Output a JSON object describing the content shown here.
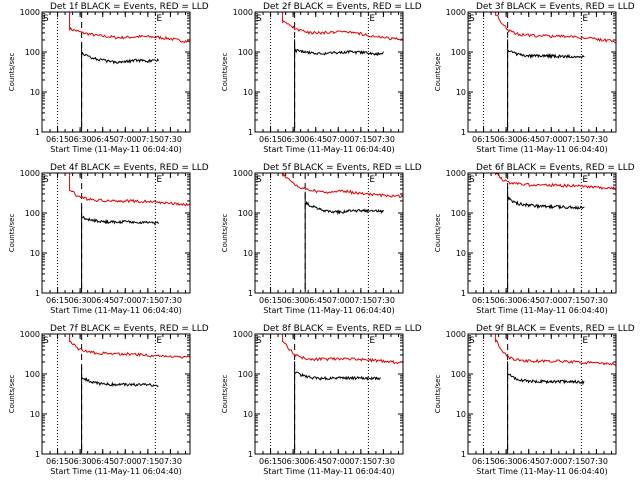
{
  "colors": {
    "events": "#000000",
    "lld": "#e00000",
    "axis": "#000000"
  },
  "shared": {
    "xlabel": "Start Time (11-May-11 06:04:40)",
    "ylabel": "Counts/sec",
    "xticks": [
      "06:15",
      "06:30",
      "06:45",
      "07:00",
      "07:15",
      "07:30"
    ],
    "yticks": [
      "1",
      "10",
      "100",
      "1000"
    ],
    "marker_s": "S",
    "marker_e": "E"
  },
  "chart_data": [
    {
      "type": "line",
      "title": "Det 1f BLACK = Events, RED = LLD",
      "y_scale": "log",
      "ylim": [
        1,
        1000
      ],
      "xlim": [
        "06:04:40",
        "07:43"
      ],
      "vlines_dotted": [
        "06:15",
        "07:20",
        "07:43"
      ],
      "vline_dashed": "06:31",
      "series": [
        {
          "id": "lld",
          "color": "#e00000",
          "x_range": [
            "06:23",
            "07:43"
          ],
          "spike_peak": 1000,
          "values": [
            380,
            340,
            300,
            280,
            260,
            250,
            240,
            230,
            230,
            235,
            240,
            245,
            240,
            235,
            225,
            215,
            200,
            190,
            180
          ]
        },
        {
          "id": "events",
          "color": "#000000",
          "x_range": [
            "06:31",
            "07:22"
          ],
          "values": [
            90,
            80,
            70,
            65,
            60,
            58,
            56,
            58,
            60,
            62,
            60,
            58,
            60,
            62
          ]
        }
      ]
    },
    {
      "type": "line",
      "title": "Det 2f BLACK = Events, RED = LLD",
      "y_scale": "log",
      "ylim": [
        1,
        1000
      ],
      "xlim": [
        "06:04:40",
        "07:43"
      ],
      "vlines_dotted": [
        "06:15",
        "07:20",
        "07:43"
      ],
      "vline_dashed": "06:31",
      "series": [
        {
          "id": "lld",
          "color": "#e00000",
          "x_range": [
            "06:23",
            "07:43"
          ],
          "spike_peak": 1000,
          "values": [
            600,
            460,
            380,
            330,
            310,
            300,
            300,
            310,
            320,
            330,
            320,
            300,
            280,
            260,
            240,
            230,
            220,
            210,
            200
          ]
        },
        {
          "id": "events",
          "color": "#000000",
          "x_range": [
            "06:31",
            "07:30"
          ],
          "values": [
            110,
            105,
            100,
            95,
            90,
            92,
            95,
            98,
            100,
            100,
            98,
            95,
            92,
            90,
            95
          ]
        }
      ]
    },
    {
      "type": "line",
      "title": "Det 3f BLACK = Events, RED = LLD",
      "y_scale": "log",
      "ylim": [
        1,
        1000
      ],
      "xlim": [
        "06:04:40",
        "07:43"
      ],
      "vlines_dotted": [
        "06:15",
        "07:20",
        "07:43"
      ],
      "vline_dashed": "06:31",
      "series": [
        {
          "id": "lld",
          "color": "#e00000",
          "x_range": [
            "06:23",
            "07:43"
          ],
          "spike_peak": 1000,
          "values": [
            900,
            500,
            340,
            290,
            270,
            260,
            255,
            255,
            250,
            250,
            250,
            245,
            240,
            230,
            220,
            210,
            200,
            190,
            180
          ]
        },
        {
          "id": "events",
          "color": "#000000",
          "x_range": [
            "06:31",
            "07:22"
          ],
          "values": [
            110,
            95,
            85,
            80,
            80,
            80,
            80,
            80,
            80,
            78,
            78,
            78,
            75,
            75
          ]
        }
      ]
    },
    {
      "type": "line",
      "title": "Det 4f BLACK = Events, RED = LLD",
      "y_scale": "log",
      "ylim": [
        1,
        1000
      ],
      "xlim": [
        "06:04:40",
        "07:43"
      ],
      "vlines_dotted": [
        "06:15",
        "07:20",
        "07:43"
      ],
      "vline_dashed": "06:31",
      "series": [
        {
          "id": "lld",
          "color": "#e00000",
          "x_range": [
            "06:23",
            "07:43"
          ],
          "spike_peak": 1000,
          "values": [
            400,
            280,
            240,
            220,
            210,
            205,
            200,
            200,
            200,
            200,
            200,
            195,
            190,
            185,
            180,
            175,
            170,
            165,
            160
          ]
        },
        {
          "id": "events",
          "color": "#000000",
          "x_range": [
            "06:31",
            "07:22"
          ],
          "values": [
            80,
            70,
            65,
            62,
            60,
            60,
            60,
            60,
            60,
            58,
            58,
            58,
            56,
            55
          ]
        }
      ]
    },
    {
      "type": "line",
      "title": "Det 5f BLACK = Events, RED = LLD",
      "y_scale": "log",
      "ylim": [
        1,
        1000
      ],
      "xlim": [
        "06:04:40",
        "07:43"
      ],
      "vlines_dotted": [
        "06:15",
        "07:20",
        "07:43"
      ],
      "vline_dashed": "06:38",
      "series": [
        {
          "id": "lld",
          "color": "#e00000",
          "x_range": [
            "06:23",
            "07:43"
          ],
          "spike_peak": 1000,
          "values": [
            900,
            700,
            500,
            420,
            380,
            350,
            330,
            330,
            340,
            350,
            340,
            320,
            300,
            290,
            280,
            275,
            270,
            265,
            260
          ]
        },
        {
          "id": "events",
          "color": "#000000",
          "x_range": [
            "06:38",
            "07:30"
          ],
          "values": [
            180,
            150,
            130,
            115,
            110,
            105,
            105,
            110,
            115,
            115,
            115,
            112,
            110,
            110
          ]
        }
      ]
    },
    {
      "type": "line",
      "title": "Det 6f BLACK = Events, RED = LLD",
      "y_scale": "log",
      "ylim": [
        1,
        1000
      ],
      "xlim": [
        "06:04:40",
        "07:43"
      ],
      "vlines_dotted": [
        "06:15",
        "07:20",
        "07:43"
      ],
      "vline_dashed": "06:31",
      "series": [
        {
          "id": "lld",
          "color": "#e00000",
          "x_range": [
            "06:23",
            "07:43"
          ],
          "spike_peak": 1000,
          "values": [
            1000,
            700,
            580,
            540,
            520,
            510,
            505,
            500,
            500,
            495,
            490,
            480,
            470,
            460,
            450,
            440,
            430,
            420,
            410
          ]
        },
        {
          "id": "events",
          "color": "#000000",
          "x_range": [
            "06:31",
            "07:22"
          ],
          "values": [
            240,
            190,
            170,
            160,
            155,
            150,
            148,
            145,
            145,
            142,
            140,
            138,
            136,
            135
          ]
        }
      ]
    },
    {
      "type": "line",
      "title": "Det 7f BLACK = Events, RED = LLD",
      "y_scale": "log",
      "ylim": [
        1,
        1000
      ],
      "xlim": [
        "06:04:40",
        "07:43"
      ],
      "vlines_dotted": [
        "06:15",
        "07:20",
        "07:43"
      ],
      "vline_dashed": "06:31",
      "series": [
        {
          "id": "lld",
          "color": "#e00000",
          "x_range": [
            "06:23",
            "07:43"
          ],
          "spike_peak": 1000,
          "values": [
            700,
            450,
            380,
            350,
            340,
            330,
            320,
            320,
            320,
            315,
            310,
            300,
            290,
            285,
            280,
            275,
            270,
            268,
            265
          ]
        },
        {
          "id": "events",
          "color": "#000000",
          "x_range": [
            "06:31",
            "07:22"
          ],
          "values": [
            80,
            70,
            62,
            58,
            56,
            55,
            55,
            55,
            55,
            54,
            54,
            54,
            53,
            52
          ]
        }
      ]
    },
    {
      "type": "line",
      "title": "Det 8f BLACK = Events, RED = LLD",
      "y_scale": "log",
      "ylim": [
        1,
        1000
      ],
      "xlim": [
        "06:04:40",
        "07:43"
      ],
      "vlines_dotted": [
        "06:15",
        "07:20",
        "07:43"
      ],
      "vline_dashed": "06:31",
      "series": [
        {
          "id": "lld",
          "color": "#e00000",
          "x_range": [
            "06:23",
            "07:43"
          ],
          "spike_peak": 1000,
          "values": [
            700,
            400,
            300,
            260,
            240,
            235,
            235,
            235,
            240,
            240,
            240,
            235,
            230,
            225,
            220,
            210,
            200,
            195,
            190
          ]
        },
        {
          "id": "events",
          "color": "#000000",
          "x_range": [
            "06:31",
            "07:28"
          ],
          "values": [
            110,
            95,
            85,
            80,
            78,
            78,
            78,
            80,
            80,
            80,
            80,
            80,
            78,
            78,
            76
          ]
        }
      ]
    },
    {
      "type": "line",
      "title": "Det 9f BLACK = Events, RED = LLD",
      "y_scale": "log",
      "ylim": [
        1,
        1000
      ],
      "xlim": [
        "06:04:40",
        "07:43"
      ],
      "vlines_dotted": [
        "06:15",
        "07:20",
        "07:43"
      ],
      "vline_dashed": "06:31",
      "series": [
        {
          "id": "lld",
          "color": "#e00000",
          "x_range": [
            "06:23",
            "07:43"
          ],
          "spike_peak": 1000,
          "values": [
            700,
            350,
            260,
            230,
            220,
            215,
            210,
            210,
            210,
            210,
            210,
            205,
            200,
            195,
            190,
            185,
            180,
            178,
            175
          ]
        },
        {
          "id": "events",
          "color": "#000000",
          "x_range": [
            "06:31",
            "07:22"
          ],
          "values": [
            110,
            80,
            72,
            68,
            66,
            65,
            65,
            65,
            65,
            65,
            64,
            64,
            63,
            62
          ]
        }
      ]
    }
  ]
}
